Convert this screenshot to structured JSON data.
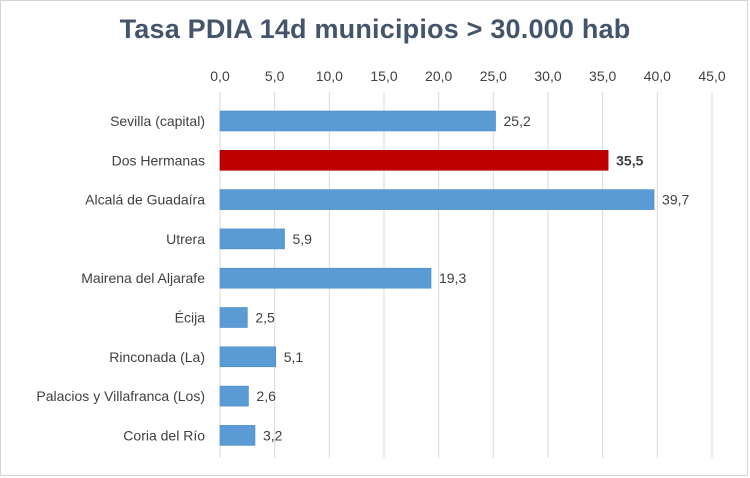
{
  "chart_data": {
    "type": "bar",
    "orientation": "horizontal",
    "title": "Tasa  PDIA  14d municipios  > 30.000 hab",
    "categories": [
      "Sevilla (capital)",
      "Dos Hermanas",
      "Alcalá de Guadaíra",
      "Utrera",
      "Mairena del Aljarafe",
      "Écija",
      "Rinconada (La)",
      "Palacios y Villafranca (Los)",
      "Coria del Río"
    ],
    "values": [
      25.2,
      35.5,
      39.7,
      5.9,
      19.3,
      2.5,
      5.1,
      2.6,
      3.2
    ],
    "value_labels": [
      "25,2",
      "35,5",
      "39,7",
      "5,9",
      "19,3",
      "2,5",
      "5,1",
      "2,6",
      "3,2"
    ],
    "xlim": [
      0,
      45
    ],
    "x_ticks": [
      0,
      5,
      10,
      15,
      20,
      25,
      30,
      35,
      40,
      45
    ],
    "x_tick_labels": [
      "0,0",
      "5,0",
      "10,0",
      "15,0",
      "20,0",
      "25,0",
      "30,0",
      "35,0",
      "40,0",
      "45,0"
    ],
    "x_axis_position": "top",
    "grid": true,
    "bar_color": "#5b9bd5",
    "highlight_index": 1,
    "highlight_color": "#c00000"
  }
}
